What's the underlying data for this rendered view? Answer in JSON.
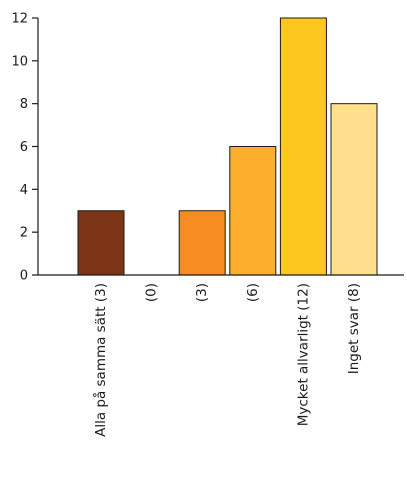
{
  "chart_data": {
    "type": "bar",
    "categories": [
      "Alla på samma sätt  (3)",
      "(0)",
      "(3)",
      "(6)",
      "Mycket allvarligt (12)",
      "Inget svar (8)"
    ],
    "values": [
      3,
      0,
      3,
      6,
      12,
      8
    ],
    "colors": [
      "#7a3517",
      "#7a3517",
      "#f48c20",
      "#fbaf2c",
      "#fdc720",
      "#fedf8c"
    ],
    "ylim": [
      0,
      12
    ],
    "yticks": [
      0,
      2,
      4,
      6,
      8,
      10,
      12
    ],
    "title": "",
    "xlabel": "",
    "ylabel": "",
    "grid": false
  }
}
